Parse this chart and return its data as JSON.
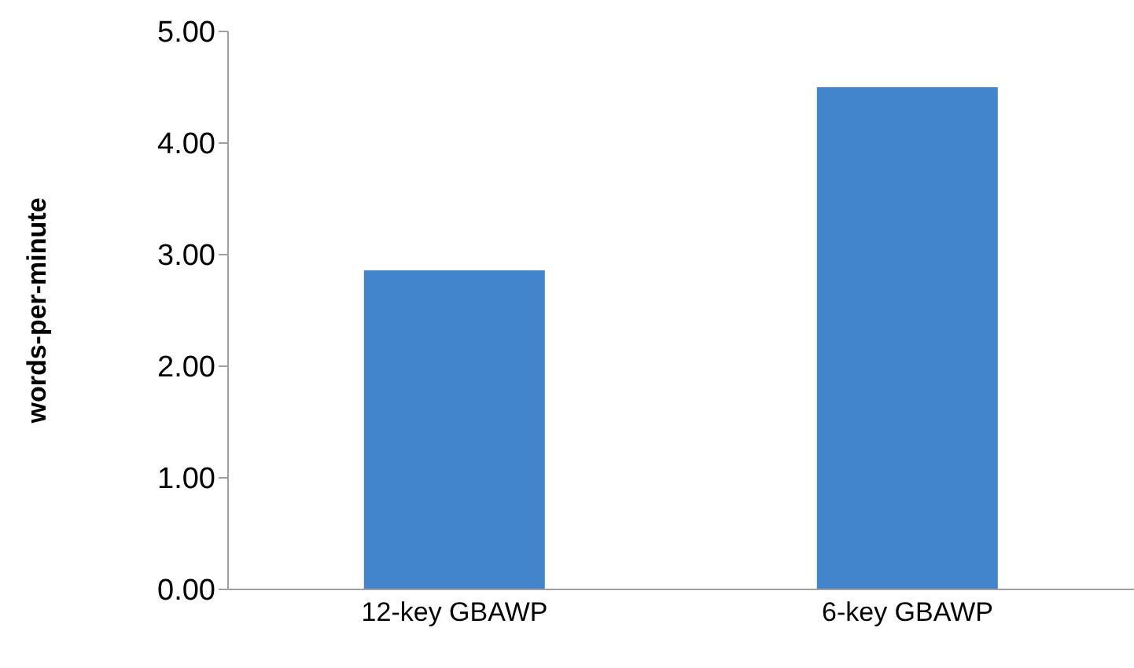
{
  "chart_data": {
    "type": "bar",
    "ylabel": "words-per-minute",
    "categories": [
      "12-key GBAWP",
      "6-key GBAWP"
    ],
    "values": [
      2.86,
      4.5
    ],
    "color": "#4285cc",
    "ylim": [
      0,
      5
    ],
    "yticks": [
      {
        "value": 0,
        "label": "0.00"
      },
      {
        "value": 1,
        "label": "1.00"
      },
      {
        "value": 2,
        "label": "2.00"
      },
      {
        "value": 3,
        "label": "3.00"
      },
      {
        "value": 4,
        "label": "4.00"
      },
      {
        "value": 5,
        "label": "5.00"
      }
    ],
    "grid": false,
    "legend": false
  }
}
